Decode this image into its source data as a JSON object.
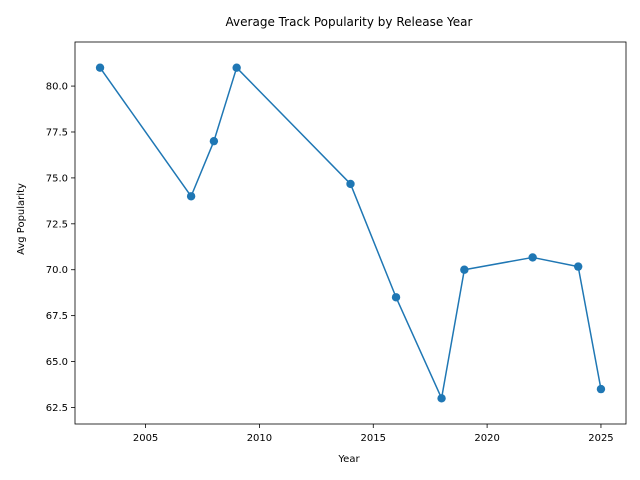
{
  "chart_data": {
    "type": "line",
    "title": "Average Track Popularity by Release Year",
    "xlabel": "Year",
    "ylabel": "Avg Popularity",
    "x": [
      2003,
      2007,
      2008,
      2009,
      2014,
      2016,
      2018,
      2019,
      2022,
      2024,
      2025
    ],
    "series": [
      {
        "values": [
          81.0,
          74.0,
          77.0,
          81.0,
          74.67,
          68.5,
          63.0,
          70.0,
          70.67,
          70.17,
          63.5
        ],
        "color": "#1f77b4",
        "marker": "circle"
      }
    ],
    "xlim": [
      2001.9,
      2026.1
    ],
    "ylim": [
      61.6,
      82.4
    ],
    "xticks": [
      2005,
      2010,
      2015,
      2020,
      2025
    ],
    "xtick_labels": [
      "2005",
      "2010",
      "2015",
      "2020",
      "2025"
    ],
    "yticks": [
      62.5,
      65.0,
      67.5,
      70.0,
      72.5,
      75.0,
      77.5,
      80.0
    ],
    "ytick_labels": [
      "62.5",
      "65.0",
      "67.5",
      "70.0",
      "72.5",
      "75.0",
      "77.5",
      "80.0"
    ],
    "grid": false,
    "legend": false
  }
}
